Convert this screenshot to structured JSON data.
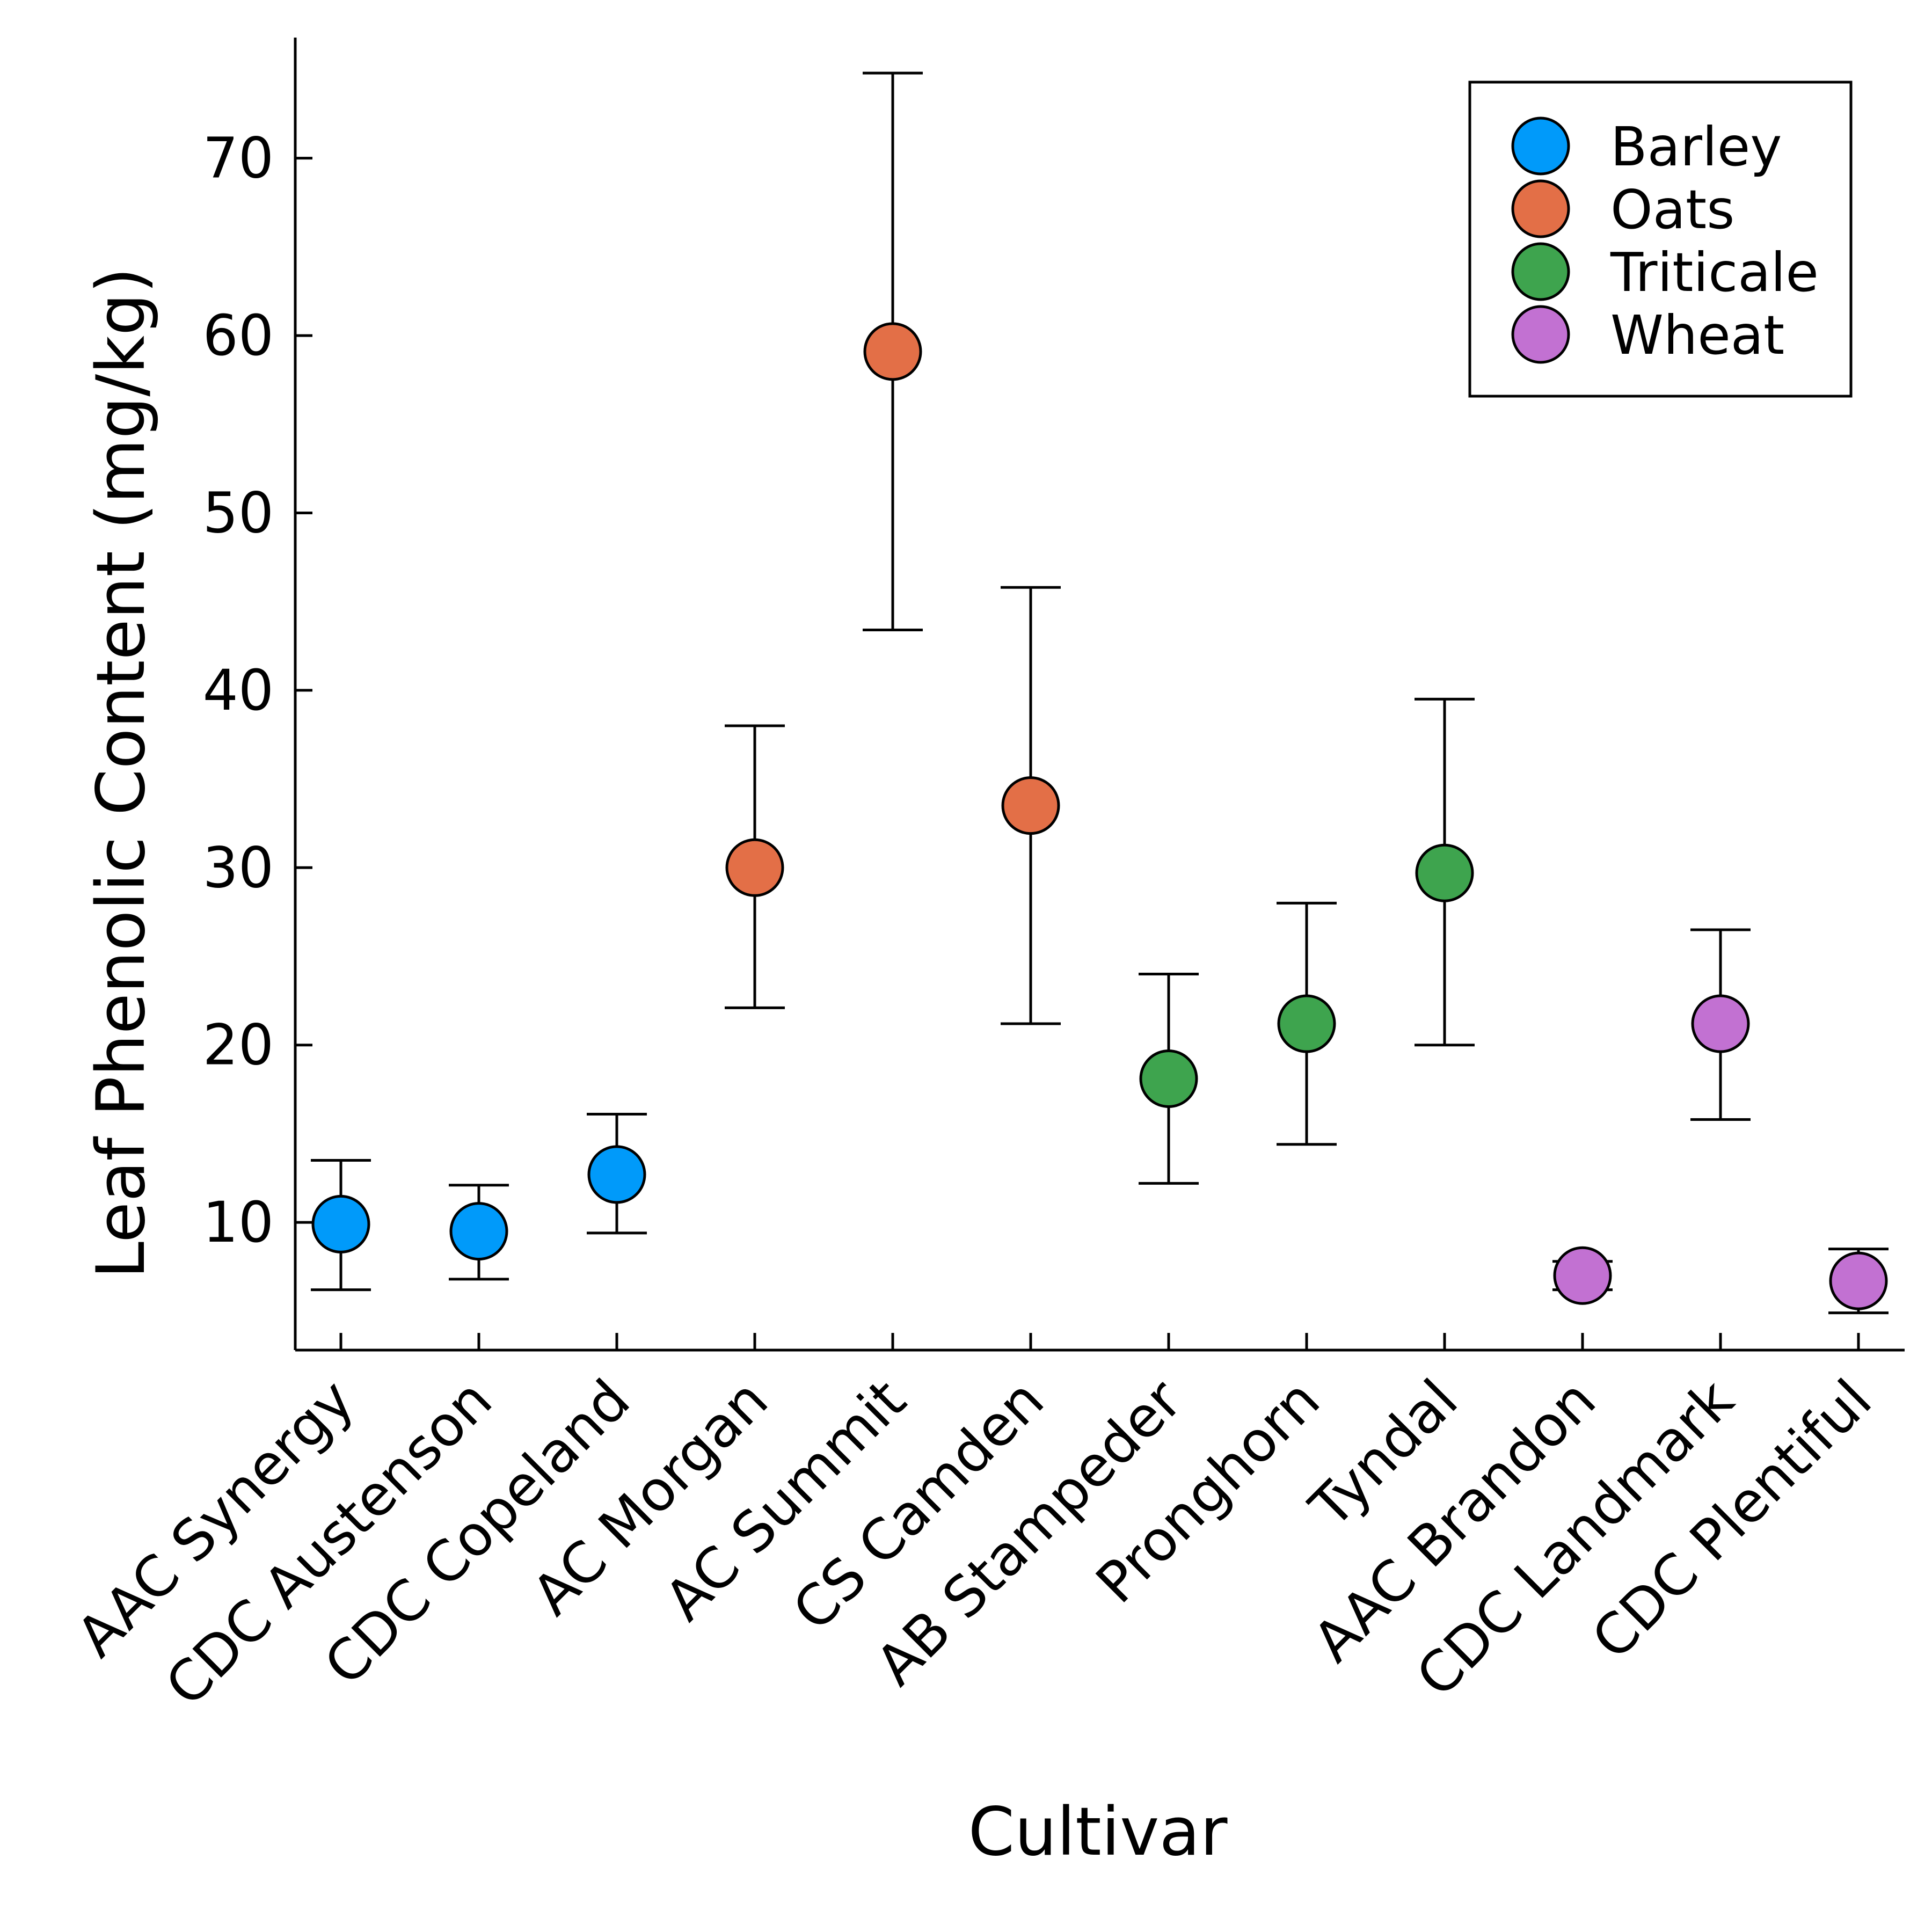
{
  "chart_data": {
    "type": "scatter",
    "xlabel": "Cultivar",
    "ylabel": "Leaf Phenolic Content (mg/kg)",
    "categories": [
      "AAC Synergy",
      "CDC Austenson",
      "CDC Copeland",
      "AC Morgan",
      "AC Summit",
      "CS Camden",
      "AB Stampeder",
      "Pronghorn",
      "Tyndal",
      "AAC Brandon",
      "CDC Landmark",
      "CDC Plentiful"
    ],
    "ylim": [
      2.8,
      76.8
    ],
    "yticks": [
      10,
      20,
      30,
      40,
      50,
      60,
      70
    ],
    "grid": false,
    "legend_position": "top-right",
    "series": [
      {
        "name": "Barley",
        "color": "#009AFA",
        "points": [
          {
            "x": "AAC Synergy",
            "y": 9.9,
            "err_low": 6.2,
            "err_high": 13.5
          },
          {
            "x": "CDC Austenson",
            "y": 9.5,
            "err_low": 6.8,
            "err_high": 12.1
          },
          {
            "x": "CDC Copeland",
            "y": 12.7,
            "err_low": 9.4,
            "err_high": 16.1
          }
        ]
      },
      {
        "name": "Oats",
        "color": "#E36F47",
        "points": [
          {
            "x": "AC Morgan",
            "y": 30.0,
            "err_low": 22.1,
            "err_high": 38.0
          },
          {
            "x": "AC Summit",
            "y": 59.1,
            "err_low": 43.4,
            "err_high": 74.8
          },
          {
            "x": "CS Camden",
            "y": 33.5,
            "err_low": 21.2,
            "err_high": 45.8
          }
        ]
      },
      {
        "name": "Triticale",
        "color": "#3EA44E",
        "points": [
          {
            "x": "AB Stampeder",
            "y": 18.1,
            "err_low": 12.2,
            "err_high": 24.0
          },
          {
            "x": "Pronghorn",
            "y": 21.2,
            "err_low": 14.4,
            "err_high": 28.0
          },
          {
            "x": "Tyndal",
            "y": 29.7,
            "err_low": 20.0,
            "err_high": 39.5
          }
        ]
      },
      {
        "name": "Wheat",
        "color": "#C271D2",
        "points": [
          {
            "x": "AAC Brandon",
            "y": 7.0,
            "err_low": 6.2,
            "err_high": 7.8
          },
          {
            "x": "CDC Landmark",
            "y": 21.2,
            "err_low": 15.8,
            "err_high": 26.5
          },
          {
            "x": "CDC Plentiful",
            "y": 6.7,
            "err_low": 4.9,
            "err_high": 8.5
          }
        ]
      }
    ]
  }
}
